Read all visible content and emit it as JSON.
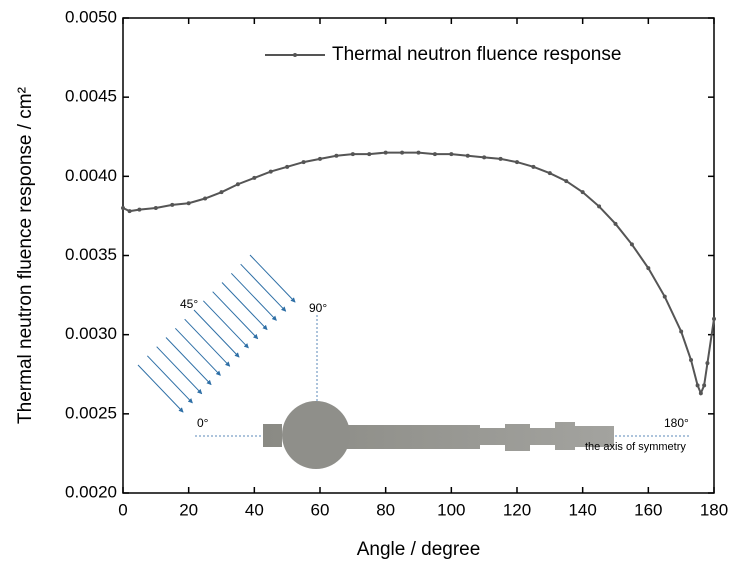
{
  "chart_data": {
    "type": "line",
    "xlabel": "Angle / degree",
    "ylabel": "Thermal neutron fluence response / cm²",
    "x": [
      0,
      2,
      5,
      10,
      15,
      20,
      25,
      30,
      35,
      40,
      45,
      50,
      55,
      60,
      65,
      70,
      75,
      80,
      85,
      90,
      95,
      100,
      105,
      110,
      115,
      120,
      125,
      130,
      135,
      140,
      145,
      150,
      155,
      160,
      165,
      170,
      173,
      175,
      176,
      177,
      178,
      180
    ],
    "series": [
      {
        "name": "Thermal neutron fluence response",
        "color": "#555555",
        "values": [
          0.0038,
          0.00378,
          0.00379,
          0.0038,
          0.00382,
          0.00383,
          0.00386,
          0.0039,
          0.00395,
          0.00399,
          0.00403,
          0.00406,
          0.00409,
          0.00411,
          0.00413,
          0.00414,
          0.00414,
          0.00415,
          0.00415,
          0.00415,
          0.00414,
          0.00414,
          0.00413,
          0.00412,
          0.00411,
          0.00409,
          0.00406,
          0.00402,
          0.00397,
          0.0039,
          0.00381,
          0.0037,
          0.00357,
          0.00342,
          0.00324,
          0.00302,
          0.00284,
          0.00268,
          0.00263,
          0.00268,
          0.00282,
          0.0031
        ]
      }
    ],
    "xlim": [
      0,
      180
    ],
    "xticks": [
      0,
      20,
      40,
      60,
      80,
      100,
      120,
      140,
      160,
      180
    ],
    "ylim": [
      0.002,
      0.005
    ],
    "yticks": [
      {
        "value": 0.002,
        "label": "0.0020"
      },
      {
        "value": 0.0025,
        "label": "0.0025"
      },
      {
        "value": 0.003,
        "label": "0.0030"
      },
      {
        "value": 0.0035,
        "label": "0.0035"
      },
      {
        "value": 0.004,
        "label": "0.0040"
      },
      {
        "value": 0.0045,
        "label": "0.0045"
      },
      {
        "value": 0.005,
        "label": "0.0050"
      }
    ],
    "legend": "upper right",
    "annotations": [
      "45°",
      "90°",
      "0°",
      "180°",
      "the axis of symmetry"
    ]
  }
}
